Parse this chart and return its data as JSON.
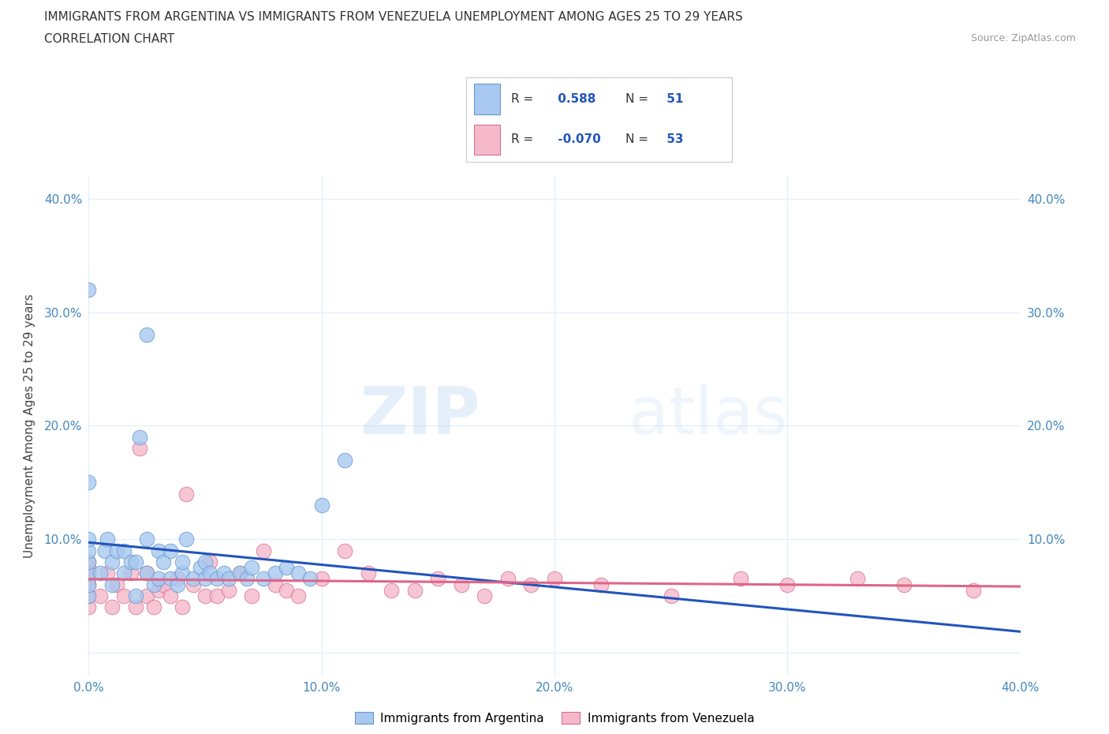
{
  "title_line1": "IMMIGRANTS FROM ARGENTINA VS IMMIGRANTS FROM VENEZUELA UNEMPLOYMENT AMONG AGES 25 TO 29 YEARS",
  "title_line2": "CORRELATION CHART",
  "source_text": "Source: ZipAtlas.com",
  "ylabel": "Unemployment Among Ages 25 to 29 years",
  "xlim": [
    0.0,
    0.4
  ],
  "ylim": [
    -0.02,
    0.42
  ],
  "xticks": [
    0.0,
    0.1,
    0.2,
    0.3,
    0.4
  ],
  "yticks": [
    0.0,
    0.1,
    0.2,
    0.3,
    0.4
  ],
  "xticklabels": [
    "0.0%",
    "10.0%",
    "20.0%",
    "30.0%",
    "40.0%"
  ],
  "yticklabels_left": [
    "",
    "10.0%",
    "20.0%",
    "30.0%",
    "40.0%"
  ],
  "yticklabels_right": [
    "",
    "10.0%",
    "20.0%",
    "30.0%",
    "40.0%"
  ],
  "argentina_color": "#A8C8F0",
  "argentina_edge": "#6699CC",
  "venezuela_color": "#F5B8CB",
  "venezuela_edge": "#D97090",
  "argentina_R": 0.588,
  "argentina_N": 51,
  "venezuela_R": -0.07,
  "venezuela_N": 53,
  "legend_label_arg": "Immigrants from Argentina",
  "legend_label_ven": "Immigrants from Venezuela",
  "argentina_line_color": "#2255BB",
  "venezuela_line_color": "#DD6688",
  "watermark_zip": "ZIP",
  "watermark_atlas": "atlas",
  "argentina_scatter_x": [
    0.0,
    0.0,
    0.0,
    0.0,
    0.0,
    0.0,
    0.0,
    0.0,
    0.005,
    0.007,
    0.008,
    0.01,
    0.01,
    0.012,
    0.015,
    0.015,
    0.018,
    0.02,
    0.02,
    0.022,
    0.025,
    0.025,
    0.025,
    0.028,
    0.03,
    0.03,
    0.032,
    0.035,
    0.035,
    0.038,
    0.04,
    0.04,
    0.042,
    0.045,
    0.048,
    0.05,
    0.05,
    0.052,
    0.055,
    0.058,
    0.06,
    0.065,
    0.068,
    0.07,
    0.075,
    0.08,
    0.085,
    0.09,
    0.095,
    0.1,
    0.11
  ],
  "argentina_scatter_y": [
    0.05,
    0.06,
    0.07,
    0.08,
    0.09,
    0.1,
    0.15,
    0.32,
    0.07,
    0.09,
    0.1,
    0.06,
    0.08,
    0.09,
    0.07,
    0.09,
    0.08,
    0.05,
    0.08,
    0.19,
    0.07,
    0.1,
    0.28,
    0.06,
    0.065,
    0.09,
    0.08,
    0.065,
    0.09,
    0.06,
    0.07,
    0.08,
    0.1,
    0.065,
    0.075,
    0.065,
    0.08,
    0.07,
    0.065,
    0.07,
    0.065,
    0.07,
    0.065,
    0.075,
    0.065,
    0.07,
    0.075,
    0.07,
    0.065,
    0.13,
    0.17
  ],
  "venezuela_scatter_x": [
    0.0,
    0.0,
    0.0,
    0.0,
    0.0,
    0.0,
    0.0,
    0.005,
    0.008,
    0.01,
    0.012,
    0.015,
    0.018,
    0.02,
    0.022,
    0.025,
    0.025,
    0.028,
    0.03,
    0.032,
    0.035,
    0.038,
    0.04,
    0.042,
    0.045,
    0.05,
    0.052,
    0.055,
    0.06,
    0.065,
    0.07,
    0.075,
    0.08,
    0.085,
    0.09,
    0.1,
    0.11,
    0.12,
    0.13,
    0.14,
    0.15,
    0.16,
    0.17,
    0.18,
    0.19,
    0.2,
    0.22,
    0.25,
    0.28,
    0.3,
    0.33,
    0.35,
    0.38
  ],
  "venezuela_scatter_y": [
    0.04,
    0.05,
    0.06,
    0.065,
    0.07,
    0.075,
    0.08,
    0.05,
    0.07,
    0.04,
    0.06,
    0.05,
    0.07,
    0.04,
    0.18,
    0.05,
    0.07,
    0.04,
    0.055,
    0.06,
    0.05,
    0.065,
    0.04,
    0.14,
    0.06,
    0.05,
    0.08,
    0.05,
    0.055,
    0.07,
    0.05,
    0.09,
    0.06,
    0.055,
    0.05,
    0.065,
    0.09,
    0.07,
    0.055,
    0.055,
    0.065,
    0.06,
    0.05,
    0.065,
    0.06,
    0.065,
    0.06,
    0.05,
    0.065,
    0.06,
    0.065,
    0.06,
    0.055
  ],
  "tick_color": "#4488BB",
  "grid_color": "#DDEEFF",
  "title_color": "#333333",
  "ylabel_color": "#444444",
  "source_color": "#999999"
}
